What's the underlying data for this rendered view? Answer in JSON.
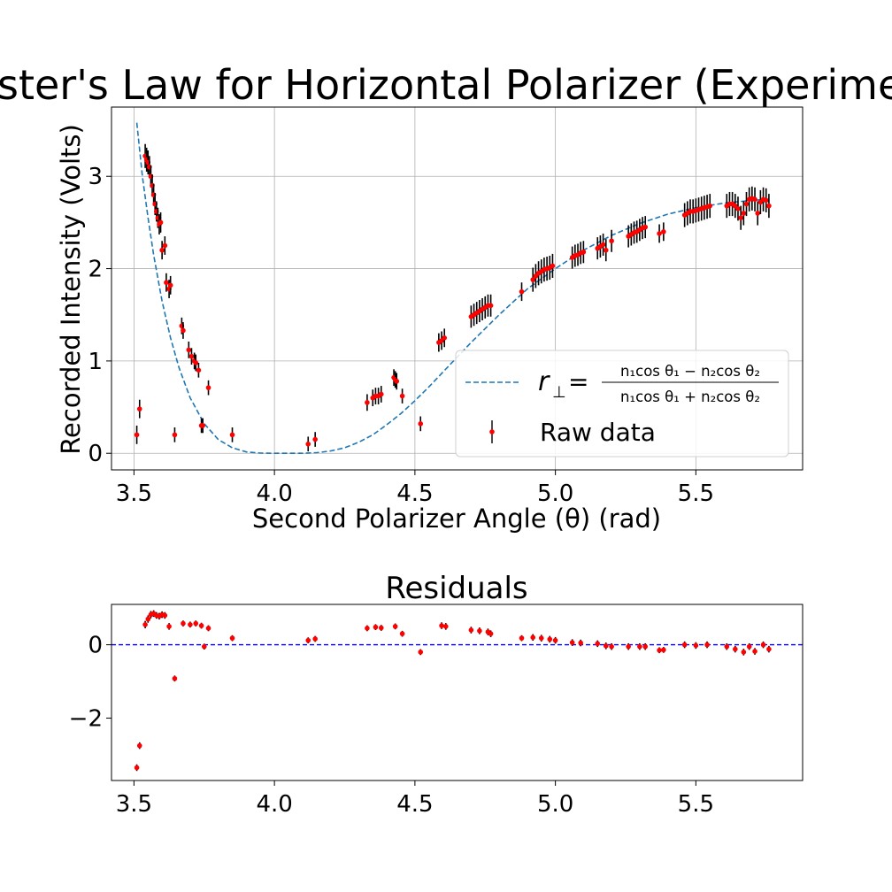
{
  "chart_data": [
    {
      "type": "scatter",
      "title": "Brewster's Law for Horizontal Polarizer (Experimental)",
      "xlabel": "Second Polarizer Angle (θ) (rad)",
      "ylabel": "Recorded Intensity (Volts)",
      "xlim": [
        3.42,
        5.88
      ],
      "ylim": [
        -0.18,
        3.75
      ],
      "xticks": [
        3.5,
        4.0,
        4.5,
        5.0,
        5.5
      ],
      "xtick_labels": [
        "3.5",
        "4.0",
        "4.5",
        "5.0",
        "5.5"
      ],
      "yticks": [
        0,
        1,
        2,
        3
      ],
      "ytick_labels": [
        "0",
        "1",
        "2",
        "3"
      ],
      "grid": true,
      "legend_position": "lower-right",
      "series": [
        {
          "name": "r⊥ = (n₁cos θ₁ − n₂cos θ₂)/(n₁cos θ₁ + n₂cos θ₂)",
          "kind": "line",
          "style": "dashed",
          "color": "#1f77b4",
          "x": [
            3.51,
            3.53,
            3.55,
            3.57,
            3.6,
            3.63,
            3.66,
            3.7,
            3.75,
            3.8,
            3.85,
            3.9,
            3.95,
            4.0,
            4.05,
            4.1,
            4.15,
            4.2,
            4.25,
            4.3,
            4.35,
            4.4,
            4.45,
            4.5,
            4.55,
            4.6,
            4.7,
            4.8,
            4.9,
            5.0,
            5.1,
            5.2,
            5.3,
            5.4,
            5.5,
            5.6,
            5.7,
            5.76
          ],
          "y": [
            3.58,
            3.0,
            2.55,
            2.15,
            1.65,
            1.25,
            0.93,
            0.6,
            0.32,
            0.15,
            0.06,
            0.015,
            0.002,
            0.0,
            0.0,
            0.0,
            0.006,
            0.025,
            0.06,
            0.12,
            0.2,
            0.31,
            0.43,
            0.57,
            0.72,
            0.88,
            1.2,
            1.5,
            1.78,
            2.0,
            2.2,
            2.36,
            2.49,
            2.59,
            2.66,
            2.71,
            2.74,
            2.75
          ]
        },
        {
          "name": "Raw data",
          "kind": "errorbar",
          "color": "#ff0000",
          "ecolor": "#000000",
          "x": [
            3.51,
            3.52,
            3.54,
            3.545,
            3.55,
            3.555,
            3.56,
            3.565,
            3.57,
            3.575,
            3.58,
            3.585,
            3.59,
            3.595,
            3.6,
            3.61,
            3.615,
            3.625,
            3.63,
            3.645,
            3.67,
            3.675,
            3.695,
            3.705,
            3.715,
            3.72,
            3.73,
            3.74,
            3.745,
            3.765,
            3.85,
            4.12,
            4.145,
            4.33,
            4.35,
            4.36,
            4.37,
            4.38,
            4.425,
            4.43,
            4.435,
            4.455,
            4.52,
            4.585,
            4.595,
            4.605,
            4.7,
            4.71,
            4.72,
            4.73,
            4.74,
            4.75,
            4.76,
            4.77,
            4.88,
            4.92,
            4.93,
            4.94,
            4.95,
            4.96,
            4.97,
            4.98,
            4.99,
            5.06,
            5.07,
            5.08,
            5.09,
            5.1,
            5.15,
            5.16,
            5.17,
            5.18,
            5.2,
            5.26,
            5.27,
            5.28,
            5.29,
            5.3,
            5.31,
            5.32,
            5.37,
            5.385,
            5.46,
            5.47,
            5.48,
            5.49,
            5.5,
            5.51,
            5.52,
            5.53,
            5.54,
            5.55,
            5.61,
            5.62,
            5.63,
            5.64,
            5.65,
            5.66,
            5.67,
            5.68,
            5.69,
            5.7,
            5.71,
            5.72,
            5.73,
            5.74,
            5.75,
            5.76
          ],
          "y": [
            0.2,
            0.48,
            3.22,
            3.18,
            3.15,
            3.1,
            3.0,
            2.9,
            2.8,
            2.7,
            2.62,
            2.55,
            2.48,
            2.5,
            2.2,
            2.25,
            1.85,
            1.78,
            1.82,
            0.2,
            1.38,
            1.33,
            1.12,
            1.05,
            1.0,
            0.98,
            0.9,
            0.3,
            0.3,
            0.71,
            0.2,
            0.1,
            0.15,
            0.55,
            0.6,
            0.62,
            0.62,
            0.64,
            0.82,
            0.8,
            0.78,
            0.62,
            0.32,
            1.2,
            1.22,
            1.25,
            1.48,
            1.5,
            1.52,
            1.54,
            1.56,
            1.58,
            1.6,
            1.6,
            1.75,
            1.88,
            1.92,
            1.95,
            1.97,
            1.99,
            2.0,
            2.01,
            2.03,
            2.12,
            2.14,
            2.15,
            2.17,
            2.18,
            2.22,
            2.24,
            2.26,
            2.2,
            2.3,
            2.35,
            2.37,
            2.39,
            2.4,
            2.42,
            2.44,
            2.45,
            2.38,
            2.4,
            2.58,
            2.6,
            2.62,
            2.62,
            2.63,
            2.64,
            2.65,
            2.66,
            2.67,
            2.68,
            2.68,
            2.7,
            2.7,
            2.68,
            2.65,
            2.55,
            2.6,
            2.7,
            2.75,
            2.76,
            2.75,
            2.6,
            2.72,
            2.75,
            2.74,
            2.68
          ],
          "yerr": [
            0.1,
            0.1,
            0.13,
            0.13,
            0.13,
            0.12,
            0.12,
            0.12,
            0.12,
            0.12,
            0.11,
            0.11,
            0.11,
            0.11,
            0.1,
            0.1,
            0.1,
            0.1,
            0.1,
            0.08,
            0.09,
            0.09,
            0.09,
            0.09,
            0.09,
            0.09,
            0.08,
            0.08,
            0.08,
            0.08,
            0.08,
            0.08,
            0.08,
            0.09,
            0.09,
            0.09,
            0.09,
            0.09,
            0.09,
            0.09,
            0.09,
            0.08,
            0.08,
            0.1,
            0.1,
            0.1,
            0.12,
            0.12,
            0.12,
            0.12,
            0.12,
            0.12,
            0.12,
            0.12,
            0.1,
            0.13,
            0.13,
            0.13,
            0.13,
            0.13,
            0.13,
            0.13,
            0.13,
            0.12,
            0.12,
            0.12,
            0.12,
            0.12,
            0.12,
            0.12,
            0.12,
            0.12,
            0.12,
            0.12,
            0.12,
            0.12,
            0.12,
            0.12,
            0.12,
            0.12,
            0.1,
            0.1,
            0.13,
            0.13,
            0.13,
            0.13,
            0.13,
            0.13,
            0.13,
            0.13,
            0.13,
            0.13,
            0.13,
            0.13,
            0.13,
            0.13,
            0.13,
            0.13,
            0.13,
            0.13,
            0.13,
            0.13,
            0.13,
            0.13,
            0.13,
            0.13,
            0.13,
            0.13
          ]
        }
      ]
    },
    {
      "type": "scatter",
      "title": "Residuals",
      "xlabel": "",
      "ylabel": "",
      "xlim": [
        3.42,
        5.88
      ],
      "ylim": [
        -3.7,
        1.1
      ],
      "xticks": [
        3.5,
        4.0,
        4.5,
        5.0,
        5.5
      ],
      "xtick_labels": [
        "3.5",
        "4.0",
        "4.5",
        "5.0",
        "5.5"
      ],
      "yticks": [
        0,
        -2
      ],
      "ytick_labels": [
        "0",
        "−2"
      ],
      "grid": false,
      "zero_line": {
        "y": 0,
        "style": "dashed",
        "color": "#0000ff"
      },
      "series": [
        {
          "name": "",
          "kind": "errorbar",
          "color": "#ff0000",
          "ecolor": "#000000",
          "x": [
            3.51,
            3.52,
            3.54,
            3.55,
            3.56,
            3.57,
            3.58,
            3.59,
            3.6,
            3.61,
            3.625,
            3.645,
            3.675,
            3.7,
            3.72,
            3.74,
            3.75,
            3.765,
            3.85,
            4.12,
            4.145,
            4.33,
            4.36,
            4.38,
            4.43,
            4.455,
            4.52,
            4.595,
            4.61,
            4.7,
            4.73,
            4.76,
            4.77,
            4.88,
            4.92,
            4.95,
            4.98,
            5.0,
            5.06,
            5.09,
            5.15,
            5.18,
            5.2,
            5.26,
            5.3,
            5.32,
            5.37,
            5.385,
            5.46,
            5.5,
            5.54,
            5.61,
            5.64,
            5.67,
            5.69,
            5.71,
            5.74,
            5.76
          ],
          "y": [
            -3.35,
            -2.75,
            0.55,
            0.7,
            0.82,
            0.85,
            0.8,
            0.78,
            0.82,
            0.8,
            0.5,
            -0.92,
            0.58,
            0.55,
            0.58,
            0.52,
            -0.05,
            0.45,
            0.18,
            0.12,
            0.16,
            0.45,
            0.48,
            0.46,
            0.5,
            0.3,
            -0.2,
            0.52,
            0.5,
            0.4,
            0.38,
            0.35,
            0.3,
            0.18,
            0.2,
            0.18,
            0.15,
            0.12,
            0.06,
            0.05,
            0.03,
            -0.03,
            -0.05,
            -0.05,
            -0.05,
            -0.05,
            -0.15,
            -0.14,
            0.0,
            -0.02,
            0.0,
            -0.05,
            -0.12,
            -0.2,
            -0.05,
            -0.18,
            0.0,
            -0.12
          ],
          "yerr": [
            0.09,
            0.09,
            0.1,
            0.1,
            0.1,
            0.09,
            0.09,
            0.09,
            0.09,
            0.09,
            0.09,
            0.08,
            0.08,
            0.08,
            0.08,
            0.08,
            0.08,
            0.08,
            0.08,
            0.08,
            0.08,
            0.08,
            0.08,
            0.08,
            0.08,
            0.08,
            0.08,
            0.09,
            0.09,
            0.09,
            0.09,
            0.09,
            0.09,
            0.08,
            0.09,
            0.09,
            0.09,
            0.09,
            0.09,
            0.09,
            0.09,
            0.09,
            0.09,
            0.09,
            0.09,
            0.09,
            0.08,
            0.08,
            0.09,
            0.09,
            0.09,
            0.09,
            0.09,
            0.09,
            0.09,
            0.09,
            0.09,
            0.09
          ]
        }
      ]
    }
  ]
}
